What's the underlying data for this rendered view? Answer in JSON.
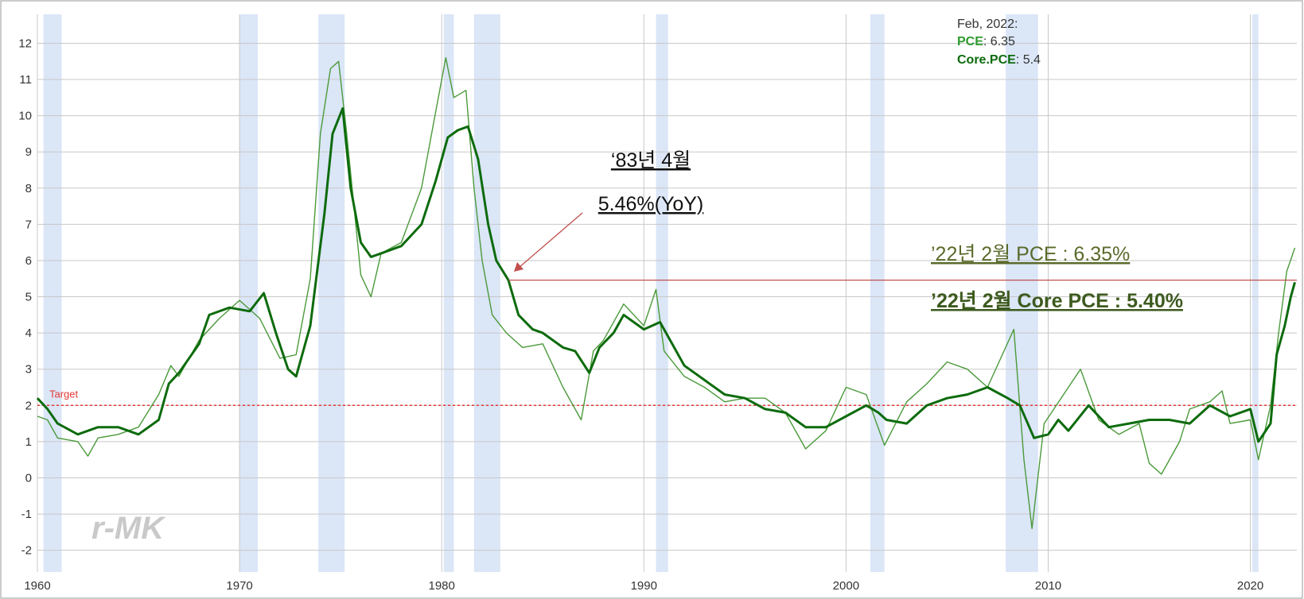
{
  "chart_data": {
    "type": "line",
    "title": "",
    "xlabel": "",
    "ylabel": "",
    "xlim": [
      1960,
      2022.3
    ],
    "ylim": [
      -2.6,
      12.8
    ],
    "x_ticks": [
      "1960",
      "1970",
      "1980",
      "1990",
      "2000",
      "2010",
      "2020"
    ],
    "y_ticks": [
      "-2",
      "-1",
      "0",
      "1",
      "2",
      "3",
      "4",
      "5",
      "6",
      "7",
      "8",
      "9",
      "10",
      "11",
      "12"
    ],
    "grid": true,
    "recessions": [
      [
        1960.3,
        1961.2
      ],
      [
        1970.0,
        1970.9
      ],
      [
        1973.9,
        1975.2
      ],
      [
        1980.1,
        1980.6
      ],
      [
        1981.6,
        1982.9
      ],
      [
        1990.6,
        1991.2
      ],
      [
        2001.2,
        2001.9
      ],
      [
        2007.9,
        2009.5
      ],
      [
        2020.1,
        2020.4
      ]
    ],
    "target": {
      "label": "Target",
      "value": 2
    },
    "series": [
      {
        "name": "PCE",
        "color": "#4a9a3a",
        "points": [
          [
            1960.0,
            1.7
          ],
          [
            1960.5,
            1.6
          ],
          [
            1961.0,
            1.1
          ],
          [
            1962.0,
            1.0
          ],
          [
            1962.5,
            0.6
          ],
          [
            1963.0,
            1.1
          ],
          [
            1964.0,
            1.2
          ],
          [
            1965.0,
            1.4
          ],
          [
            1966.0,
            2.3
          ],
          [
            1966.6,
            3.1
          ],
          [
            1967.0,
            2.8
          ],
          [
            1968.0,
            3.8
          ],
          [
            1969.0,
            4.4
          ],
          [
            1970.0,
            4.9
          ],
          [
            1971.0,
            4.4
          ],
          [
            1972.0,
            3.3
          ],
          [
            1972.8,
            3.4
          ],
          [
            1973.5,
            5.5
          ],
          [
            1974.0,
            9.5
          ],
          [
            1974.5,
            11.3
          ],
          [
            1974.9,
            11.5
          ],
          [
            1975.3,
            9.5
          ],
          [
            1976.0,
            5.6
          ],
          [
            1976.5,
            5.0
          ],
          [
            1977.0,
            6.2
          ],
          [
            1978.0,
            6.5
          ],
          [
            1979.0,
            8.0
          ],
          [
            1979.6,
            9.8
          ],
          [
            1980.2,
            11.6
          ],
          [
            1980.6,
            10.5
          ],
          [
            1981.2,
            10.7
          ],
          [
            1981.6,
            8.0
          ],
          [
            1982.0,
            6.0
          ],
          [
            1982.5,
            4.5
          ],
          [
            1983.2,
            4.0
          ],
          [
            1984.0,
            3.6
          ],
          [
            1985.0,
            3.7
          ],
          [
            1986.0,
            2.5
          ],
          [
            1986.9,
            1.6
          ],
          [
            1987.5,
            3.5
          ],
          [
            1988.0,
            3.8
          ],
          [
            1989.0,
            4.8
          ],
          [
            1990.0,
            4.2
          ],
          [
            1990.6,
            5.2
          ],
          [
            1991.0,
            3.5
          ],
          [
            1992.0,
            2.8
          ],
          [
            1993.0,
            2.5
          ],
          [
            1994.0,
            2.1
          ],
          [
            1995.0,
            2.2
          ],
          [
            1996.0,
            2.2
          ],
          [
            1997.0,
            1.8
          ],
          [
            1998.0,
            0.8
          ],
          [
            1999.0,
            1.3
          ],
          [
            2000.0,
            2.5
          ],
          [
            2001.0,
            2.3
          ],
          [
            2001.9,
            0.9
          ],
          [
            2003.0,
            2.1
          ],
          [
            2004.0,
            2.6
          ],
          [
            2005.0,
            3.2
          ],
          [
            2006.0,
            3.0
          ],
          [
            2007.0,
            2.5
          ],
          [
            2008.3,
            4.1
          ],
          [
            2008.8,
            0.5
          ],
          [
            2009.2,
            -1.4
          ],
          [
            2009.8,
            1.5
          ],
          [
            2011.0,
            2.5
          ],
          [
            2011.6,
            3.0
          ],
          [
            2012.5,
            1.6
          ],
          [
            2013.5,
            1.2
          ],
          [
            2014.5,
            1.5
          ],
          [
            2015.0,
            0.4
          ],
          [
            2015.6,
            0.1
          ],
          [
            2016.5,
            1.0
          ],
          [
            2017.0,
            1.9
          ],
          [
            2018.0,
            2.1
          ],
          [
            2018.6,
            2.4
          ],
          [
            2019.0,
            1.5
          ],
          [
            2020.0,
            1.6
          ],
          [
            2020.4,
            0.5
          ],
          [
            2021.0,
            2.0
          ],
          [
            2021.4,
            4.0
          ],
          [
            2021.8,
            5.7
          ],
          [
            2022.2,
            6.35
          ]
        ]
      },
      {
        "name": "Core.PCE",
        "color": "#0d6b0d",
        "points": [
          [
            1960.0,
            2.2
          ],
          [
            1960.5,
            1.9
          ],
          [
            1961.0,
            1.5
          ],
          [
            1962.0,
            1.2
          ],
          [
            1963.0,
            1.4
          ],
          [
            1964.0,
            1.4
          ],
          [
            1965.0,
            1.2
          ],
          [
            1966.0,
            1.6
          ],
          [
            1966.5,
            2.6
          ],
          [
            1967.0,
            2.9
          ],
          [
            1968.0,
            3.7
          ],
          [
            1968.5,
            4.5
          ],
          [
            1969.5,
            4.7
          ],
          [
            1970.5,
            4.6
          ],
          [
            1971.2,
            5.1
          ],
          [
            1971.8,
            4.0
          ],
          [
            1972.4,
            3.0
          ],
          [
            1972.8,
            2.8
          ],
          [
            1973.5,
            4.2
          ],
          [
            1974.2,
            7.3
          ],
          [
            1974.6,
            9.5
          ],
          [
            1975.1,
            10.2
          ],
          [
            1975.5,
            8.0
          ],
          [
            1976.0,
            6.5
          ],
          [
            1976.5,
            6.1
          ],
          [
            1977.0,
            6.2
          ],
          [
            1978.0,
            6.4
          ],
          [
            1979.0,
            7.0
          ],
          [
            1979.7,
            8.2
          ],
          [
            1980.3,
            9.4
          ],
          [
            1980.8,
            9.6
          ],
          [
            1981.3,
            9.7
          ],
          [
            1981.8,
            8.8
          ],
          [
            1982.3,
            7.0
          ],
          [
            1982.7,
            6.0
          ],
          [
            1983.3,
            5.46
          ],
          [
            1983.8,
            4.5
          ],
          [
            1984.5,
            4.1
          ],
          [
            1985.0,
            4.0
          ],
          [
            1986.0,
            3.6
          ],
          [
            1986.6,
            3.5
          ],
          [
            1987.3,
            2.9
          ],
          [
            1987.8,
            3.6
          ],
          [
            1988.5,
            4.0
          ],
          [
            1989.0,
            4.5
          ],
          [
            1990.0,
            4.1
          ],
          [
            1990.8,
            4.3
          ],
          [
            1991.5,
            3.6
          ],
          [
            1992.0,
            3.1
          ],
          [
            1993.0,
            2.7
          ],
          [
            1994.0,
            2.3
          ],
          [
            1995.0,
            2.2
          ],
          [
            1996.0,
            1.9
          ],
          [
            1997.0,
            1.8
          ],
          [
            1998.0,
            1.4
          ],
          [
            1999.0,
            1.4
          ],
          [
            2000.0,
            1.7
          ],
          [
            2001.0,
            2.0
          ],
          [
            2001.6,
            1.8
          ],
          [
            2002.0,
            1.6
          ],
          [
            2003.0,
            1.5
          ],
          [
            2004.0,
            2.0
          ],
          [
            2005.0,
            2.2
          ],
          [
            2006.0,
            2.3
          ],
          [
            2007.0,
            2.5
          ],
          [
            2008.0,
            2.2
          ],
          [
            2008.6,
            2.0
          ],
          [
            2009.3,
            1.1
          ],
          [
            2010.0,
            1.2
          ],
          [
            2010.5,
            1.6
          ],
          [
            2011.0,
            1.3
          ],
          [
            2012.0,
            2.0
          ],
          [
            2013.0,
            1.4
          ],
          [
            2014.0,
            1.5
          ],
          [
            2015.0,
            1.6
          ],
          [
            2016.0,
            1.6
          ],
          [
            2017.0,
            1.5
          ],
          [
            2018.0,
            2.0
          ],
          [
            2019.0,
            1.7
          ],
          [
            2020.0,
            1.9
          ],
          [
            2020.4,
            1.0
          ],
          [
            2021.0,
            1.5
          ],
          [
            2021.3,
            3.4
          ],
          [
            2021.7,
            4.2
          ],
          [
            2022.0,
            5.0
          ],
          [
            2022.2,
            5.4
          ]
        ]
      }
    ]
  },
  "annotations": {
    "tooltip": {
      "date": "Feb, 2022:",
      "pce_label": "PCE",
      "pce_value": ": 6.35",
      "core_label": "Core.PCE",
      "core_value": ": 5.4"
    },
    "callout_1983": {
      "line1": "‘83년 4월",
      "line2": "5.46%(YoY)",
      "level": 5.46,
      "x": 1983.3
    },
    "label_pce_2022": "’22년 2월 PCE : 6.35%",
    "label_core_2022": "’22년 2월 Core PCE : 5.40%",
    "watermark": "r-MK"
  },
  "colors": {
    "recession": "#dbe6f7",
    "grid": "#c8c8c8",
    "target": "#e53935",
    "annotation_line": "#c0504d",
    "pce_label": "#5a6a2a",
    "core_label": "#3d5a1e"
  }
}
